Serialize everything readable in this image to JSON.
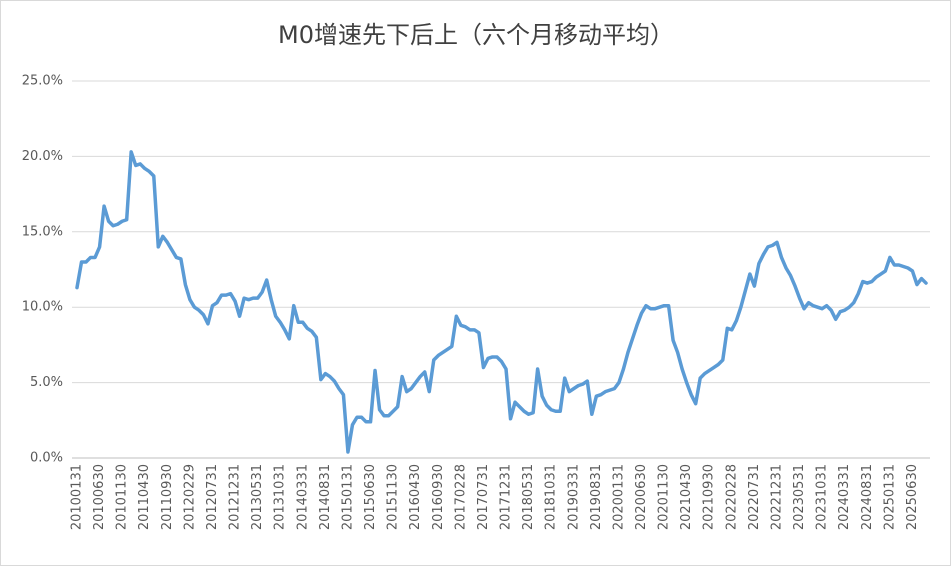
{
  "chart_data": {
    "type": "line",
    "title": "M0增速先下后上（六个月移动平均）",
    "categories": [
      "20100131",
      null,
      null,
      null,
      null,
      "20100630",
      null,
      null,
      null,
      null,
      "20101130",
      null,
      null,
      null,
      null,
      "20110430",
      null,
      null,
      null,
      null,
      "20110930",
      null,
      null,
      null,
      null,
      "20120229",
      null,
      null,
      null,
      null,
      "20120731",
      null,
      null,
      null,
      null,
      "20121231",
      null,
      null,
      null,
      null,
      "20130531",
      null,
      null,
      null,
      null,
      "20131031",
      null,
      null,
      null,
      null,
      "20140331",
      null,
      null,
      null,
      null,
      "20140831",
      null,
      null,
      null,
      null,
      "20150131",
      null,
      null,
      null,
      null,
      "20150630",
      null,
      null,
      null,
      null,
      "20151130",
      null,
      null,
      null,
      null,
      "20160430",
      null,
      null,
      null,
      null,
      "20160930",
      null,
      null,
      null,
      null,
      "20170228",
      null,
      null,
      null,
      null,
      "20170731",
      null,
      null,
      null,
      null,
      "20171231",
      null,
      null,
      null,
      null,
      "20180531",
      null,
      null,
      null,
      null,
      "20181031",
      null,
      null,
      null,
      null,
      "20190331",
      null,
      null,
      null,
      null,
      "20190831",
      null,
      null,
      null,
      null,
      "20200131",
      null,
      null,
      null,
      null,
      "20200630",
      null,
      null,
      null,
      null,
      "20201130",
      null,
      null,
      null,
      null,
      "20210430",
      null,
      null,
      null,
      null,
      "20210930",
      null,
      null,
      null,
      null,
      "20220228",
      null,
      null,
      null,
      null,
      "20220731",
      null,
      null,
      null,
      null,
      "20221231",
      null,
      null,
      null,
      null,
      "20230531",
      null,
      null,
      null,
      null,
      "20231031",
      null,
      null,
      null,
      null,
      "20240331",
      null,
      null,
      null,
      null,
      "20240831",
      null,
      null,
      null,
      null,
      "20250131",
      null,
      null,
      null,
      null,
      "20250630",
      null,
      null,
      null
    ],
    "values": [
      11.3,
      13.0,
      13.0,
      13.3,
      13.3,
      14.0,
      16.7,
      15.7,
      15.4,
      15.5,
      15.7,
      15.8,
      20.3,
      19.4,
      19.5,
      19.2,
      19.0,
      18.7,
      14.0,
      14.7,
      14.3,
      13.8,
      13.3,
      13.2,
      11.5,
      10.5,
      10.0,
      9.8,
      9.5,
      8.9,
      10.1,
      10.3,
      10.8,
      10.8,
      10.9,
      10.4,
      9.4,
      10.6,
      10.5,
      10.6,
      10.6,
      11.0,
      11.8,
      10.5,
      9.4,
      9.0,
      8.5,
      7.9,
      10.1,
      9.0,
      9.0,
      8.6,
      8.4,
      8.0,
      5.2,
      5.6,
      5.4,
      5.1,
      4.6,
      4.2,
      0.4,
      2.2,
      2.7,
      2.7,
      2.4,
      2.4,
      5.8,
      3.2,
      2.8,
      2.8,
      3.1,
      3.4,
      5.4,
      4.4,
      4.6,
      5.0,
      5.4,
      5.7,
      4.4,
      6.5,
      6.8,
      7.0,
      7.2,
      7.4,
      9.4,
      8.8,
      8.7,
      8.5,
      8.5,
      8.3,
      6.0,
      6.6,
      6.7,
      6.7,
      6.4,
      5.9,
      2.6,
      3.7,
      3.4,
      3.1,
      2.9,
      3.0,
      5.9,
      4.1,
      3.5,
      3.2,
      3.1,
      3.1,
      5.3,
      4.4,
      4.6,
      4.8,
      4.9,
      5.1,
      2.9,
      4.1,
      4.2,
      4.4,
      4.5,
      4.6,
      5.0,
      5.9,
      7.0,
      7.9,
      8.8,
      9.6,
      10.1,
      9.9,
      9.9,
      10.0,
      10.1,
      10.1,
      7.8,
      7.0,
      5.9,
      5.0,
      4.2,
      3.6,
      5.3,
      5.6,
      5.8,
      6.0,
      6.2,
      6.5,
      8.6,
      8.5,
      9.1,
      10.0,
      11.1,
      12.2,
      11.4,
      12.9,
      13.5,
      14.0,
      14.1,
      14.3,
      13.3,
      12.6,
      12.1,
      11.4,
      10.6,
      9.9,
      10.3,
      10.1,
      10.0,
      9.9,
      10.1,
      9.8,
      9.2,
      9.7,
      9.8,
      10.0,
      10.3,
      10.9,
      11.7,
      11.6,
      11.7,
      12.0,
      12.2,
      12.4,
      13.3,
      12.8,
      12.8,
      12.7,
      12.6,
      12.4,
      11.5,
      11.9,
      11.6
    ],
    "color": "#5b9bd5",
    "ylim": [
      0,
      25
    ],
    "yticks": [
      {
        "value": 0,
        "label": "0.0%"
      },
      {
        "value": 5,
        "label": "5.0%"
      },
      {
        "value": 10,
        "label": "10.0%"
      },
      {
        "value": 15,
        "label": "15.0%"
      },
      {
        "value": 20,
        "label": "20.0%"
      },
      {
        "value": 25,
        "label": "25.0%"
      }
    ],
    "grid": true
  }
}
